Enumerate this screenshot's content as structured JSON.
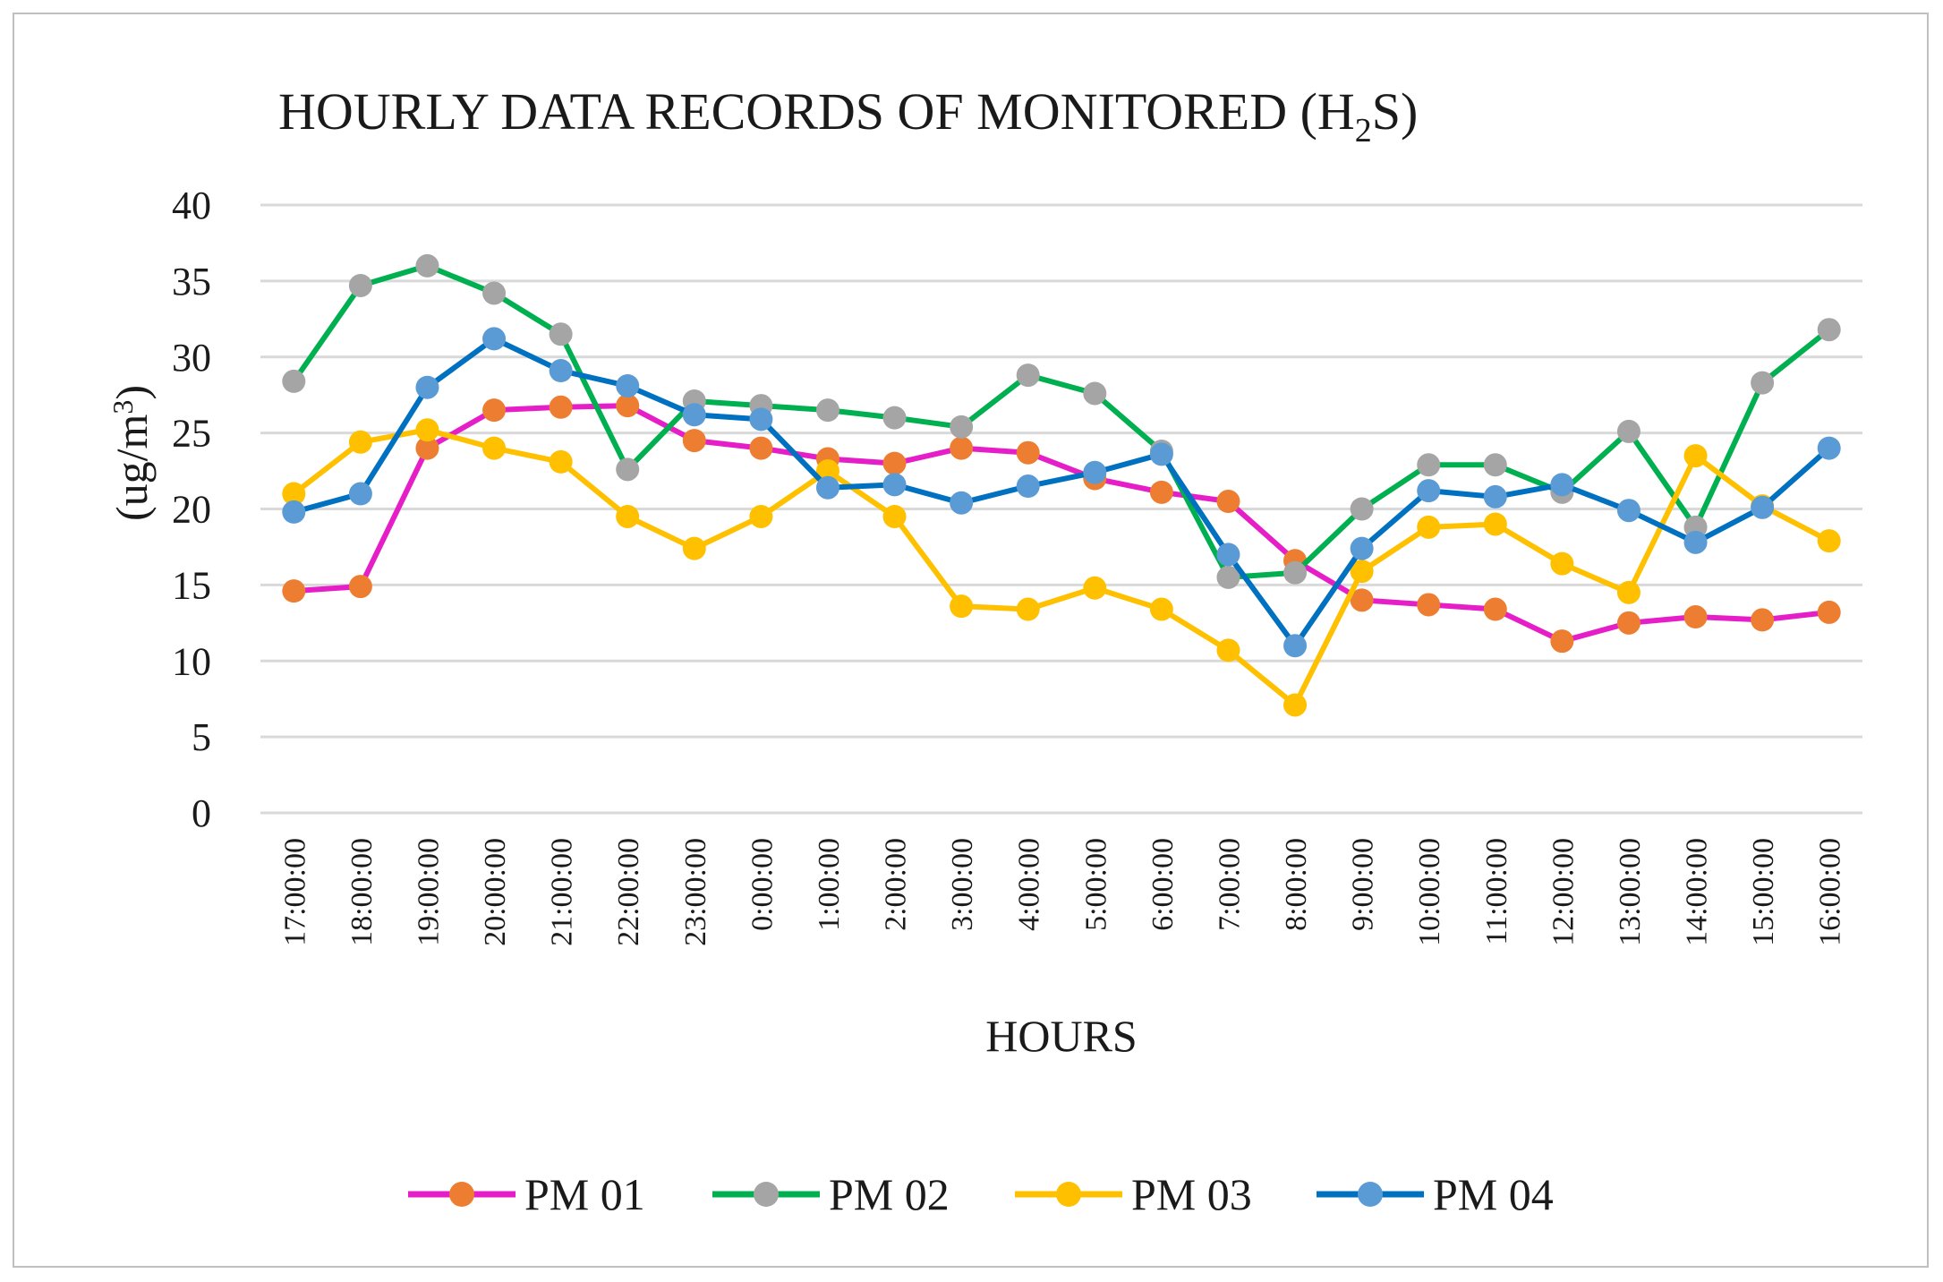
{
  "chart_data": {
    "type": "line",
    "title": "HOURLY DATA RECORDS OF MONITORED (H",
    "title_subscript": "2",
    "title_suffix": "S)",
    "xlabel": "HOURS",
    "ylabel": "(ug/m",
    "ylabel_superscript": "3",
    "ylabel_suffix": ")",
    "ylim": [
      0,
      40
    ],
    "yticks": [
      "0",
      "5",
      "10",
      "15",
      "20",
      "25",
      "30",
      "35",
      "40"
    ],
    "grid": true,
    "legend_position": "bottom",
    "categories": [
      "17:00:00",
      "18:00:00",
      "19:00:00",
      "20:00:00",
      "21:00:00",
      "22:00:00",
      "23:00:00",
      "0:00:00",
      "1:00:00",
      "2:00:00",
      "3:00:00",
      "4:00:00",
      "5:00:00",
      "6:00:00",
      "7:00:00",
      "8:00:00",
      "9:00:00",
      "10:00:00",
      "11:00:00",
      "12:00:00",
      "13:00:00",
      "14:00:00",
      "15:00:00",
      "16:00:00"
    ],
    "series": [
      {
        "name": "PM 01",
        "line_color": "#e61ec8",
        "marker_color": "#ed7d31",
        "values": [
          14.6,
          14.9,
          24.0,
          26.5,
          26.7,
          26.8,
          24.5,
          24.0,
          23.3,
          23.0,
          24.0,
          23.7,
          22.0,
          21.1,
          20.5,
          16.6,
          14.0,
          13.7,
          13.4,
          11.3,
          12.5,
          12.9,
          12.7,
          13.2
        ]
      },
      {
        "name": "PM 02",
        "line_color": "#00b050",
        "marker_color": "#a5a5a5",
        "values": [
          28.4,
          34.7,
          36.0,
          34.2,
          31.5,
          22.6,
          27.1,
          26.8,
          26.5,
          26.0,
          25.4,
          28.8,
          27.6,
          23.8,
          15.5,
          15.8,
          20.0,
          22.9,
          22.9,
          21.1,
          25.1,
          18.8,
          28.3,
          31.8
        ]
      },
      {
        "name": "PM 03",
        "line_color": "#ffc000",
        "marker_color": "#ffc000",
        "values": [
          21.0,
          24.4,
          25.2,
          24.0,
          23.1,
          19.5,
          17.4,
          19.5,
          22.5,
          19.5,
          13.6,
          13.4,
          14.8,
          13.4,
          10.7,
          7.1,
          15.9,
          18.8,
          19.0,
          16.4,
          14.5,
          23.5,
          20.2,
          17.9
        ]
      },
      {
        "name": "PM 04",
        "line_color": "#0070c0",
        "marker_color": "#5b9bd5",
        "values": [
          19.8,
          21.0,
          28.0,
          31.2,
          29.1,
          28.1,
          26.2,
          25.9,
          21.4,
          21.6,
          20.4,
          21.5,
          22.4,
          23.6,
          17.0,
          11.0,
          17.4,
          21.2,
          20.8,
          21.6,
          19.9,
          17.8,
          20.1,
          24.0
        ]
      }
    ]
  }
}
